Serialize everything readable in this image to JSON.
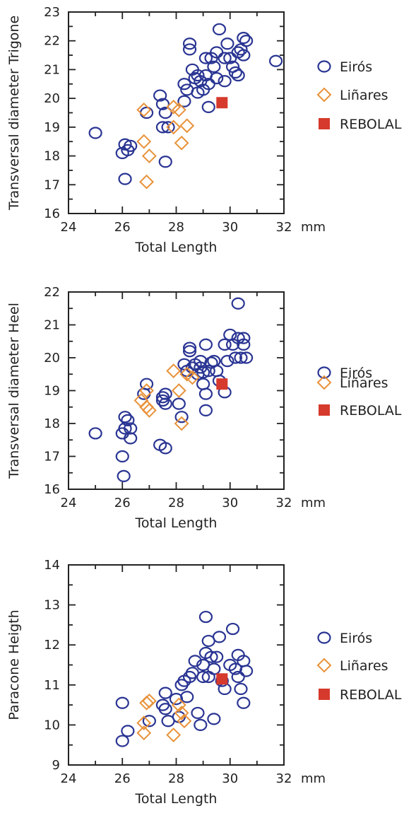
{
  "colors": {
    "eiros": "#2a3593",
    "linares": "#e8923a",
    "rebolal": "#d63a2c",
    "axis": "#222222"
  },
  "chart_data": [
    {
      "type": "scatter",
      "xlabel": "Total Length",
      "x_unit": "mm",
      "ylabel": "Transversal diameter Trigone",
      "xlim": [
        24,
        32
      ],
      "ylim": [
        16,
        23
      ],
      "x_ticks": [
        "24",
        "26",
        "28",
        "30",
        "32"
      ],
      "y_ticks": [
        "16",
        "17",
        "18",
        "19",
        "20",
        "21",
        "22",
        "23"
      ],
      "legend": [
        "Eirós",
        "Liñares",
        "REBOLAL"
      ],
      "series": [
        {
          "name": "Eirós",
          "marker": "circle",
          "points": [
            [
              25.0,
              18.8
            ],
            [
              26.0,
              18.1
            ],
            [
              26.1,
              18.4
            ],
            [
              26.2,
              18.2
            ],
            [
              26.3,
              18.35
            ],
            [
              26.1,
              17.2
            ],
            [
              26.9,
              19.5
            ],
            [
              27.4,
              20.1
            ],
            [
              27.5,
              19.8
            ],
            [
              27.6,
              19.5
            ],
            [
              27.5,
              19.0
            ],
            [
              27.7,
              19.0
            ],
            [
              27.6,
              17.8
            ],
            [
              28.3,
              19.9
            ],
            [
              28.4,
              20.3
            ],
            [
              28.3,
              20.5
            ],
            [
              28.5,
              21.9
            ],
            [
              28.5,
              21.7
            ],
            [
              28.6,
              21.0
            ],
            [
              28.7,
              20.7
            ],
            [
              28.8,
              20.8
            ],
            [
              28.9,
              20.6
            ],
            [
              28.8,
              20.2
            ],
            [
              29.0,
              20.3
            ],
            [
              29.1,
              20.8
            ],
            [
              29.1,
              21.4
            ],
            [
              29.2,
              20.5
            ],
            [
              29.2,
              19.7
            ],
            [
              29.3,
              21.4
            ],
            [
              29.4,
              21.1
            ],
            [
              29.6,
              22.4
            ],
            [
              29.5,
              21.6
            ],
            [
              29.5,
              20.7
            ],
            [
              29.8,
              20.6
            ],
            [
              29.8,
              21.4
            ],
            [
              29.9,
              21.9
            ],
            [
              30.0,
              21.4
            ],
            [
              30.1,
              21.1
            ],
            [
              30.2,
              20.9
            ],
            [
              30.3,
              20.8
            ],
            [
              30.3,
              21.6
            ],
            [
              30.4,
              21.7
            ],
            [
              30.5,
              22.1
            ],
            [
              30.6,
              22.0
            ],
            [
              30.5,
              21.5
            ],
            [
              31.7,
              21.3
            ]
          ]
        },
        {
          "name": "Liñares",
          "marker": "diamond",
          "points": [
            [
              26.8,
              19.6
            ],
            [
              26.8,
              18.5
            ],
            [
              27.0,
              18.0
            ],
            [
              26.9,
              17.1
            ],
            [
              27.9,
              19.7
            ],
            [
              28.1,
              19.6
            ],
            [
              28.4,
              19.05
            ],
            [
              28.2,
              18.45
            ],
            [
              27.9,
              19.0
            ]
          ]
        },
        {
          "name": "REBOLAL",
          "marker": "square",
          "points": [
            [
              29.7,
              19.85
            ]
          ]
        }
      ]
    },
    {
      "type": "scatter",
      "xlabel": "Total Length",
      "x_unit": "mm",
      "ylabel": "Transversal diameter Heel",
      "xlim": [
        24,
        32
      ],
      "ylim": [
        16,
        22
      ],
      "x_ticks": [
        "24",
        "26",
        "28",
        "30",
        "32"
      ],
      "y_ticks": [
        "16",
        "17",
        "18",
        "19",
        "20",
        "21",
        "22"
      ],
      "legend": [
        "Eirós",
        "Liñares",
        "REBOLAL"
      ],
      "series": [
        {
          "name": "Eirós",
          "marker": "circle",
          "points": [
            [
              25.0,
              17.7
            ],
            [
              26.0,
              17.0
            ],
            [
              26.05,
              16.4
            ],
            [
              26.0,
              17.7
            ],
            [
              26.1,
              18.2
            ],
            [
              26.2,
              18.1
            ],
            [
              26.1,
              17.85
            ],
            [
              26.3,
              17.85
            ],
            [
              26.3,
              17.55
            ],
            [
              26.8,
              18.9
            ],
            [
              26.9,
              19.2
            ],
            [
              27.4,
              17.35
            ],
            [
              27.6,
              17.25
            ],
            [
              27.5,
              18.7
            ],
            [
              27.6,
              18.6
            ],
            [
              27.6,
              18.9
            ],
            [
              27.5,
              18.8
            ],
            [
              28.1,
              18.6
            ],
            [
              28.2,
              18.2
            ],
            [
              28.3,
              19.8
            ],
            [
              28.4,
              19.6
            ],
            [
              28.5,
              20.3
            ],
            [
              28.5,
              20.2
            ],
            [
              28.6,
              19.7
            ],
            [
              28.7,
              19.8
            ],
            [
              28.8,
              19.5
            ],
            [
              28.9,
              19.9
            ],
            [
              28.9,
              19.7
            ],
            [
              29.0,
              19.2
            ],
            [
              29.0,
              19.55
            ],
            [
              29.1,
              18.9
            ],
            [
              29.1,
              18.4
            ],
            [
              29.1,
              20.4
            ],
            [
              29.2,
              19.6
            ],
            [
              29.3,
              19.85
            ],
            [
              29.4,
              19.9
            ],
            [
              29.5,
              19.6
            ],
            [
              29.6,
              19.3
            ],
            [
              29.8,
              18.95
            ],
            [
              29.8,
              20.4
            ],
            [
              29.9,
              19.9
            ],
            [
              30.0,
              20.7
            ],
            [
              30.1,
              20.4
            ],
            [
              30.2,
              20.0
            ],
            [
              30.3,
              20.6
            ],
            [
              30.3,
              21.65
            ],
            [
              30.4,
              20.0
            ],
            [
              30.5,
              20.6
            ],
            [
              30.5,
              20.4
            ],
            [
              30.6,
              20.0
            ]
          ]
        },
        {
          "name": "Liñares",
          "marker": "diamond",
          "points": [
            [
              26.7,
              18.7
            ],
            [
              26.9,
              19.0
            ],
            [
              27.0,
              18.4
            ],
            [
              26.9,
              18.5
            ],
            [
              27.9,
              19.6
            ],
            [
              28.1,
              19.0
            ],
            [
              28.2,
              18.0
            ],
            [
              28.4,
              19.5
            ],
            [
              28.6,
              19.4
            ]
          ]
        },
        {
          "name": "REBOLAL",
          "marker": "square",
          "points": [
            [
              29.7,
              19.2
            ]
          ]
        }
      ]
    },
    {
      "type": "scatter",
      "xlabel": "Total Length",
      "x_unit": "mm",
      "ylabel": "Paracone Heigth",
      "xlim": [
        24,
        32
      ],
      "ylim": [
        9,
        14
      ],
      "x_ticks": [
        "24",
        "26",
        "28",
        "30",
        "32"
      ],
      "y_ticks": [
        "9",
        "10",
        "11",
        "12",
        "13",
        "14"
      ],
      "legend": [
        "Eirós",
        "Liñares",
        "REBOLAL"
      ],
      "series": [
        {
          "name": "Eirós",
          "marker": "circle",
          "points": [
            [
              26.0,
              10.55
            ],
            [
              26.0,
              9.6
            ],
            [
              26.2,
              9.85
            ],
            [
              27.0,
              10.1
            ],
            [
              27.5,
              10.5
            ],
            [
              27.6,
              10.4
            ],
            [
              27.7,
              10.1
            ],
            [
              27.6,
              10.8
            ],
            [
              28.0,
              10.65
            ],
            [
              28.2,
              11.0
            ],
            [
              28.1,
              10.2
            ],
            [
              28.3,
              11.1
            ],
            [
              28.4,
              10.7
            ],
            [
              28.5,
              11.2
            ],
            [
              28.6,
              11.3
            ],
            [
              28.7,
              11.6
            ],
            [
              28.8,
              10.3
            ],
            [
              28.9,
              10.0
            ],
            [
              29.0,
              11.5
            ],
            [
              29.0,
              11.2
            ],
            [
              29.1,
              11.8
            ],
            [
              29.1,
              12.7
            ],
            [
              29.2,
              12.1
            ],
            [
              29.2,
              11.2
            ],
            [
              29.3,
              11.7
            ],
            [
              29.4,
              11.4
            ],
            [
              29.4,
              10.15
            ],
            [
              29.5,
              11.7
            ],
            [
              29.6,
              12.2
            ],
            [
              29.7,
              11.1
            ],
            [
              29.8,
              10.9
            ],
            [
              30.0,
              11.5
            ],
            [
              30.1,
              12.4
            ],
            [
              30.2,
              11.4
            ],
            [
              30.3,
              11.2
            ],
            [
              30.3,
              11.75
            ],
            [
              30.4,
              10.9
            ],
            [
              30.5,
              11.6
            ],
            [
              30.5,
              10.55
            ],
            [
              30.6,
              11.35
            ]
          ]
        },
        {
          "name": "Liñares",
          "marker": "diamond",
          "points": [
            [
              26.8,
              9.8
            ],
            [
              26.9,
              10.55
            ],
            [
              27.0,
              10.6
            ],
            [
              26.8,
              10.05
            ],
            [
              27.9,
              9.75
            ],
            [
              28.1,
              10.5
            ],
            [
              28.3,
              10.1
            ],
            [
              28.2,
              10.3
            ]
          ]
        },
        {
          "name": "REBOLAL",
          "marker": "square",
          "points": [
            [
              29.7,
              11.15
            ]
          ]
        }
      ]
    }
  ]
}
